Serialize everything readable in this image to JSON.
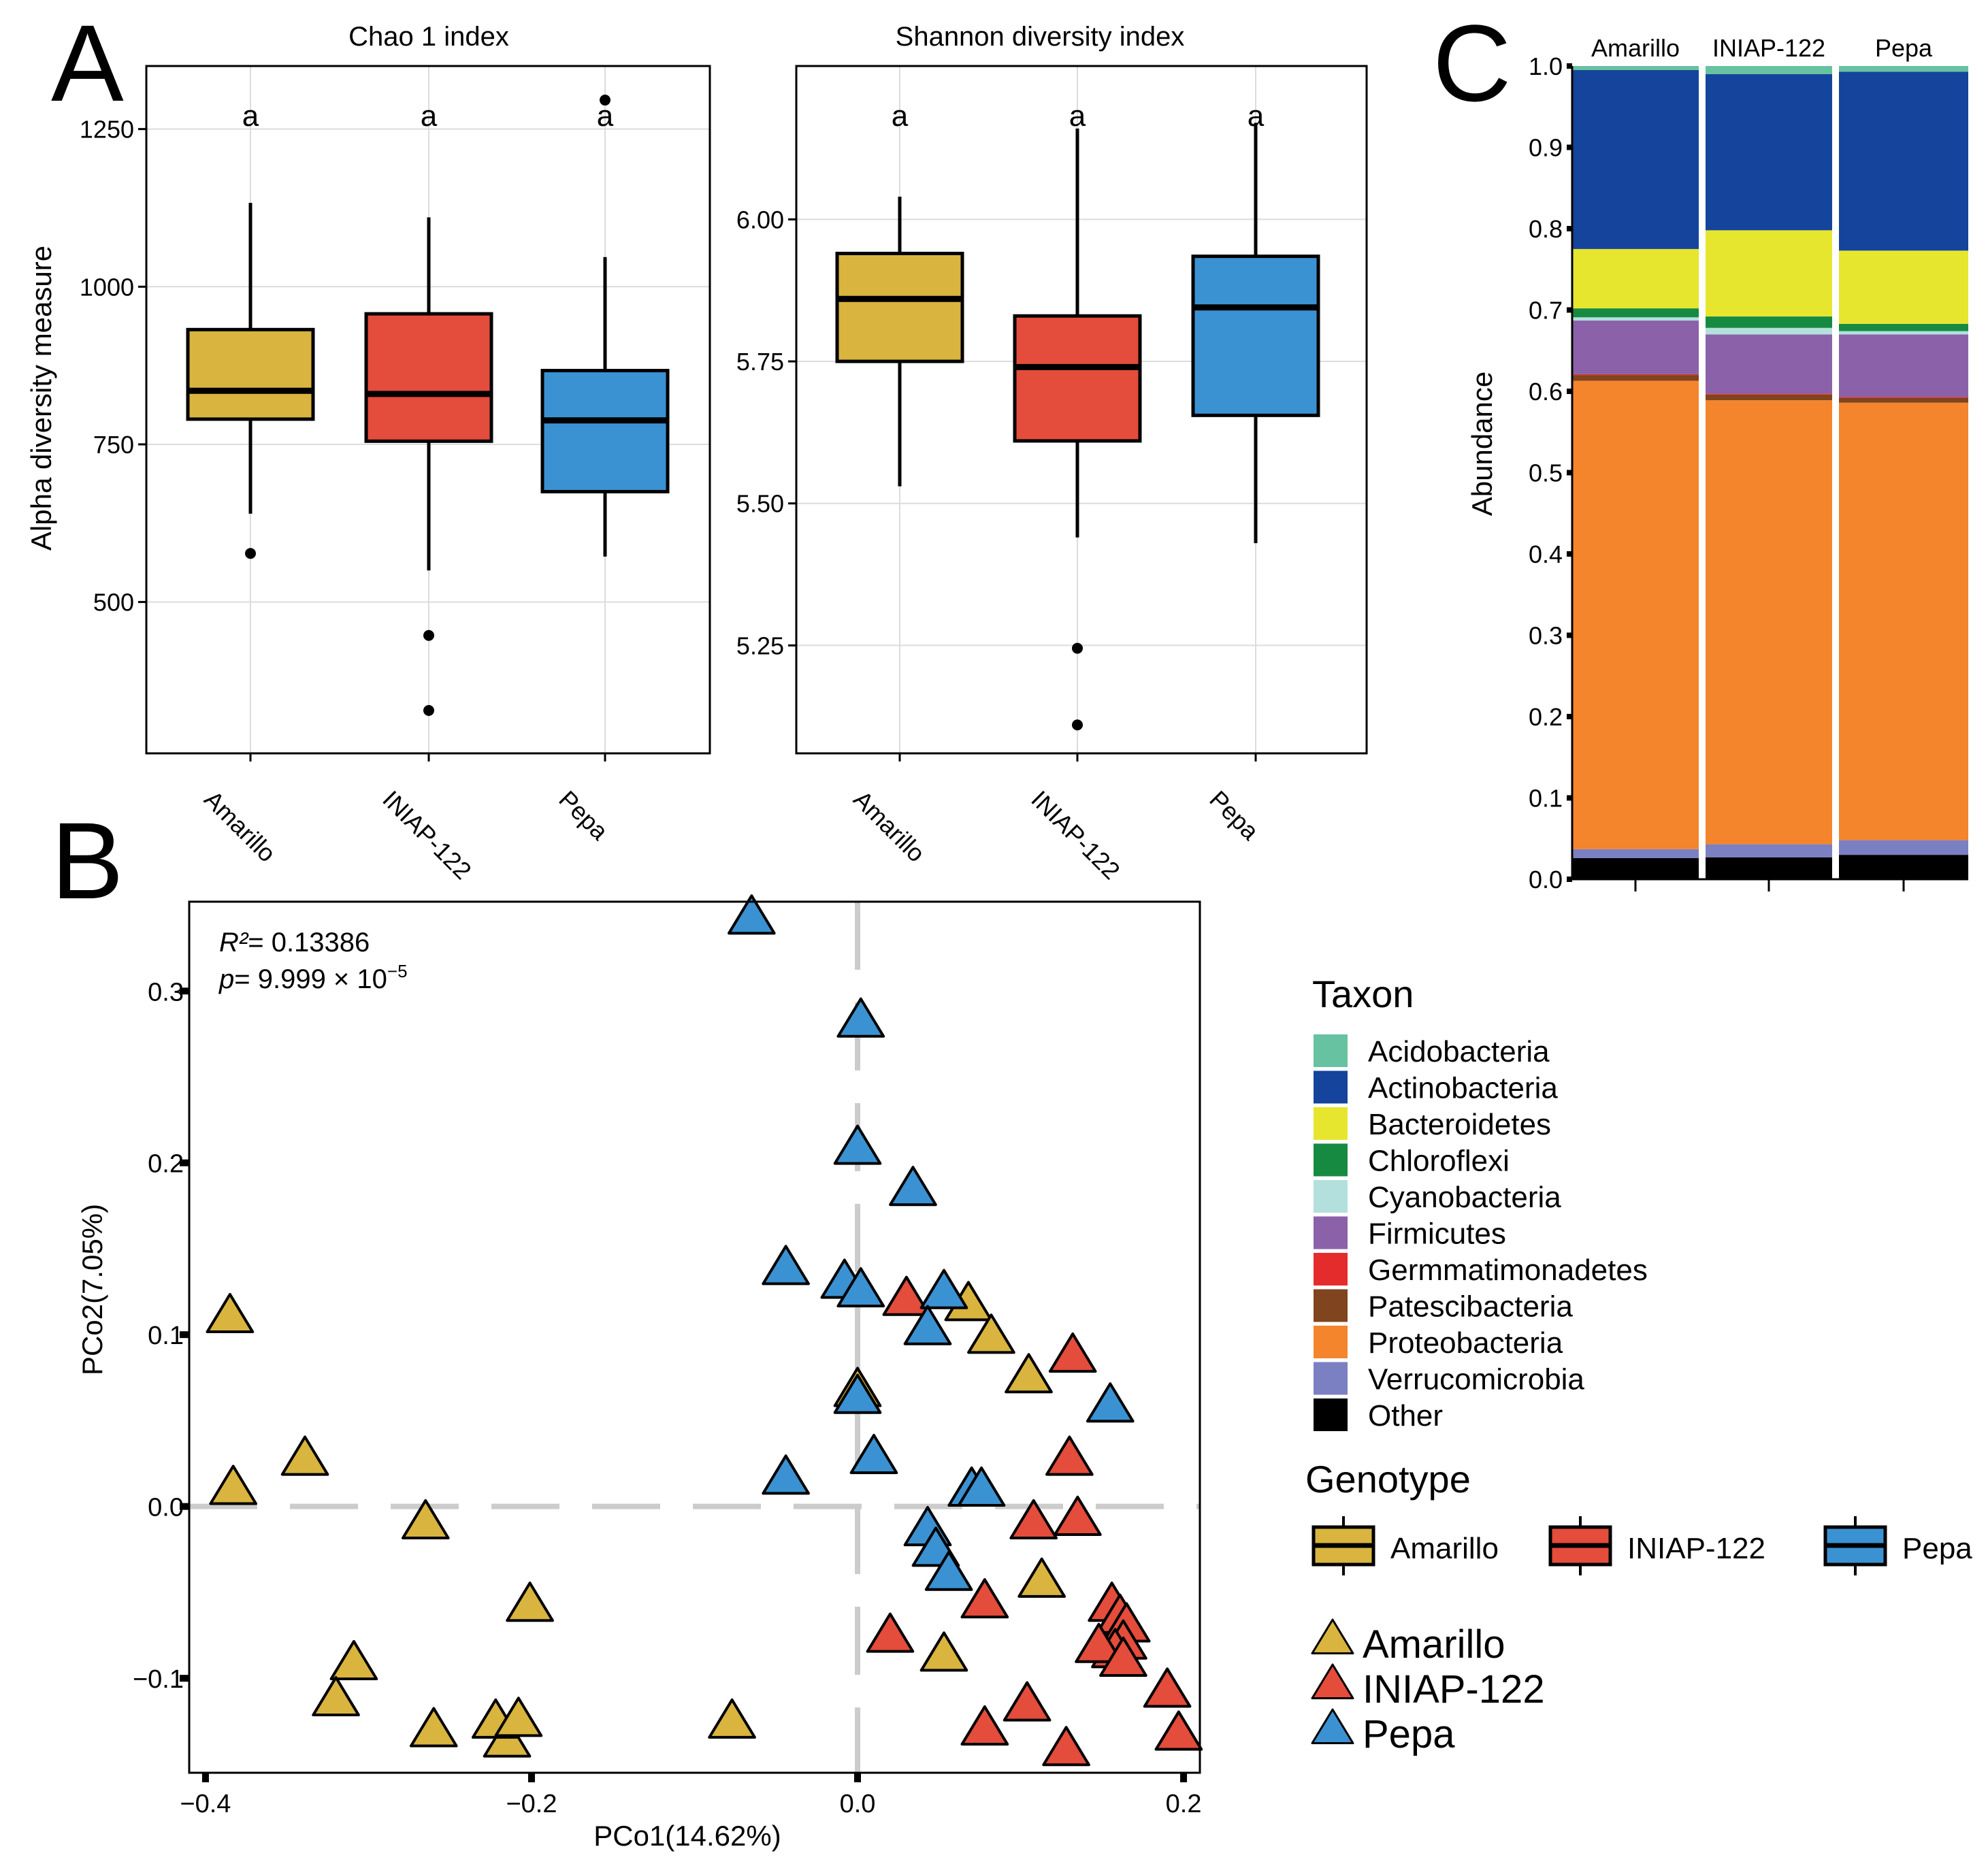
{
  "panel_letters": {
    "a": "A",
    "b": "B",
    "c": "C"
  },
  "colors": {
    "Amarillo": "#d9b43e",
    "INIAP-122": "#e44c3b",
    "Pepa": "#3b92d2",
    "Acidobacteria": "#66c2a0",
    "Actinobacteria": "#14449b",
    "Bacteroidetes": "#e6e62e",
    "Chloroflexi": "#178a42",
    "Cyanobacteria": "#b3e0dc",
    "Firmicutes": "#8b62a9",
    "Germmatimonadetes": "#e52c2c",
    "Patescibacteria": "#80441e",
    "Proteobacteria": "#f4852c",
    "Verrucomicrobia": "#7a80c2",
    "Other": "#000000"
  },
  "chart_data": [
    {
      "id": "chao1",
      "type": "box",
      "title": "Chao 1 index",
      "xlabel": "",
      "ylabel": "Alpha diversity measure",
      "ylim": [
        260,
        1350
      ],
      "yticks": [
        500,
        750,
        1000,
        1250
      ],
      "ytick_labels": [
        "500",
        "750",
        "1000",
        "1250"
      ],
      "categories": [
        "Amarillo",
        "INIAP-122",
        "Pepa"
      ],
      "boxes": [
        {
          "group": "Amarillo",
          "whisker_low": 640,
          "q1": 790,
          "median": 835,
          "q3": 932,
          "whisker_high": 1133,
          "outliers": [
            577
          ],
          "letter": "a"
        },
        {
          "group": "INIAP-122",
          "whisker_low": 550,
          "q1": 755,
          "median": 830,
          "q3": 957,
          "whisker_high": 1110,
          "outliers": [
            447,
            328
          ],
          "letter": "a"
        },
        {
          "group": "Pepa",
          "whisker_low": 572,
          "q1": 675,
          "median": 788,
          "q3": 867,
          "whisker_high": 1047,
          "outliers": [
            1296
          ],
          "letter": "a"
        }
      ],
      "grid": true
    },
    {
      "id": "shannon",
      "type": "box",
      "title": "Shannon diversity index",
      "xlabel": "",
      "ylabel": "",
      "ylim": [
        5.06,
        6.27
      ],
      "yticks": [
        5.25,
        5.5,
        5.75,
        6.0
      ],
      "ytick_labels": [
        "5.25",
        "5.50",
        "5.75",
        "6.00"
      ],
      "categories": [
        "Amarillo",
        "INIAP-122",
        "Pepa"
      ],
      "boxes": [
        {
          "group": "Amarillo",
          "whisker_low": 5.53,
          "q1": 5.75,
          "median": 5.86,
          "q3": 5.94,
          "whisker_high": 6.04,
          "outliers": [],
          "letter": "a"
        },
        {
          "group": "INIAP-122",
          "whisker_low": 5.44,
          "q1": 5.61,
          "median": 5.74,
          "q3": 5.83,
          "whisker_high": 6.16,
          "outliers": [
            5.245,
            5.11
          ],
          "letter": "a"
        },
        {
          "group": "Pepa",
          "whisker_low": 5.43,
          "q1": 5.655,
          "median": 5.845,
          "q3": 5.935,
          "whisker_high": 6.17,
          "outliers": [],
          "letter": "a"
        }
      ],
      "grid": true
    },
    {
      "id": "pcoa",
      "type": "scatter",
      "title": "",
      "xlabel": "PCo1(14.62%)",
      "ylabel": "PCo2(7.05%)",
      "xlim": [
        -0.41,
        0.21
      ],
      "ylim": [
        -0.155,
        0.352
      ],
      "xticks": [
        -0.4,
        -0.2,
        0.0,
        0.2
      ],
      "xtick_labels": [
        "−0.4",
        "−0.2",
        "0.0",
        "0.2"
      ],
      "yticks": [
        -0.1,
        0.0,
        0.1,
        0.2,
        0.3
      ],
      "ytick_labels": [
        "−0.1",
        "0.0",
        "0.1",
        "0.2",
        "0.3"
      ],
      "annotation": {
        "r2_sym": "R²",
        "r2_text": "= 0.13386",
        "p_sym": "p",
        "p_text": "= 9.999 × 10",
        "p_exp": "−5"
      },
      "series": [
        {
          "name": "Amarillo",
          "points": [
            [
              -0.385,
              0.11
            ],
            [
              -0.383,
              0.01
            ],
            [
              -0.339,
              0.027
            ],
            [
              -0.265,
              -0.01
            ],
            [
              -0.201,
              -0.058
            ],
            [
              -0.309,
              -0.092
            ],
            [
              -0.32,
              -0.113
            ],
            [
              -0.26,
              -0.131
            ],
            [
              -0.215,
              -0.137
            ],
            [
              -0.222,
              -0.126
            ],
            [
              -0.208,
              -0.125
            ],
            [
              -0.077,
              -0.126
            ],
            [
              0.0,
              0.067
            ],
            [
              0.068,
              0.117
            ],
            [
              0.082,
              0.098
            ],
            [
              0.105,
              0.075
            ],
            [
              0.113,
              -0.044
            ],
            [
              0.053,
              -0.087
            ]
          ]
        },
        {
          "name": "INIAP-122",
          "points": [
            [
              0.03,
              0.12
            ],
            [
              0.132,
              0.087
            ],
            [
              0.13,
              0.027
            ],
            [
              0.108,
              -0.01
            ],
            [
              0.135,
              -0.008
            ],
            [
              0.078,
              -0.056
            ],
            [
              0.02,
              -0.076
            ],
            [
              0.156,
              -0.058
            ],
            [
              0.161,
              -0.065
            ],
            [
              0.165,
              -0.07
            ],
            [
              0.163,
              -0.08
            ],
            [
              0.158,
              -0.085
            ],
            [
              0.148,
              -0.082
            ],
            [
              0.163,
              -0.09
            ],
            [
              0.19,
              -0.108
            ],
            [
              0.197,
              -0.133
            ],
            [
              0.104,
              -0.116
            ],
            [
              0.078,
              -0.13
            ],
            [
              0.128,
              -0.142
            ]
          ]
        },
        {
          "name": "Pepa",
          "points": [
            [
              -0.065,
              0.342
            ],
            [
              0.002,
              0.282
            ],
            [
              0.0,
              0.208
            ],
            [
              0.034,
              0.184
            ],
            [
              -0.044,
              0.138
            ],
            [
              -0.008,
              0.13
            ],
            [
              0.002,
              0.125
            ],
            [
              0.053,
              0.124
            ],
            [
              0.043,
              0.103
            ],
            [
              0.0,
              0.063
            ],
            [
              0.01,
              0.028
            ],
            [
              -0.044,
              0.016
            ],
            [
              0.07,
              0.009
            ],
            [
              0.076,
              0.009
            ],
            [
              0.155,
              0.058
            ],
            [
              0.043,
              -0.014
            ],
            [
              0.048,
              -0.026
            ],
            [
              0.056,
              -0.04
            ]
          ]
        }
      ],
      "grid": false
    },
    {
      "id": "composition",
      "type": "stacked-bar",
      "title": "",
      "xlabel": "",
      "ylabel": "Abundance",
      "ylim": [
        0,
        1.0
      ],
      "yticks": [
        0,
        0.1,
        0.2,
        0.3,
        0.4,
        0.5,
        0.6,
        0.7,
        0.8,
        0.9,
        1.0
      ],
      "ytick_labels": [
        "0.0",
        "0.1",
        "0.2",
        "0.3",
        "0.4",
        "0.5",
        "0.6",
        "0.7",
        "0.8",
        "0.9",
        "1.0"
      ],
      "categories": [
        "Amarillo",
        "INIAP-122",
        "Pepa"
      ],
      "stack_order": [
        "Other",
        "Verrucomicrobia",
        "Proteobacteria",
        "Patescibacteria",
        "Germmatimonadetes",
        "Firmicutes",
        "Cyanobacteria",
        "Chloroflexi",
        "Bacteroidetes",
        "Actinobacteria",
        "Acidobacteria"
      ],
      "series": [
        {
          "name": "Other",
          "values": [
            0.026,
            0.027,
            0.03
          ]
        },
        {
          "name": "Verrucomicrobia",
          "values": [
            0.011,
            0.016,
            0.018
          ]
        },
        {
          "name": "Proteobacteria",
          "values": [
            0.576,
            0.546,
            0.538
          ]
        },
        {
          "name": "Patescibacteria",
          "values": [
            0.007,
            0.007,
            0.006
          ]
        },
        {
          "name": "Germmatimonadetes",
          "values": [
            0.001,
            0.001,
            0.001
          ]
        },
        {
          "name": "Firmicutes",
          "values": [
            0.066,
            0.073,
            0.077
          ]
        },
        {
          "name": "Cyanobacteria",
          "values": [
            0.004,
            0.008,
            0.004
          ]
        },
        {
          "name": "Chloroflexi",
          "values": [
            0.011,
            0.014,
            0.009
          ]
        },
        {
          "name": "Bacteroidetes",
          "values": [
            0.073,
            0.106,
            0.09
          ]
        },
        {
          "name": "Actinobacteria",
          "values": [
            0.22,
            0.192,
            0.22
          ]
        },
        {
          "name": "Acidobacteria",
          "values": [
            0.005,
            0.01,
            0.007
          ]
        }
      ]
    }
  ],
  "legend": {
    "taxon_title": "Taxon",
    "taxa": [
      "Acidobacteria",
      "Actinobacteria",
      "Bacteroidetes",
      "Chloroflexi",
      "Cyanobacteria",
      "Firmicutes",
      "Germmatimonadetes",
      "Patescibacteria",
      "Proteobacteria",
      "Verrucomicrobia",
      "Other"
    ],
    "genotype_title": "Genotype",
    "genotypes": [
      "Amarillo",
      "INIAP-122",
      "Pepa"
    ]
  }
}
